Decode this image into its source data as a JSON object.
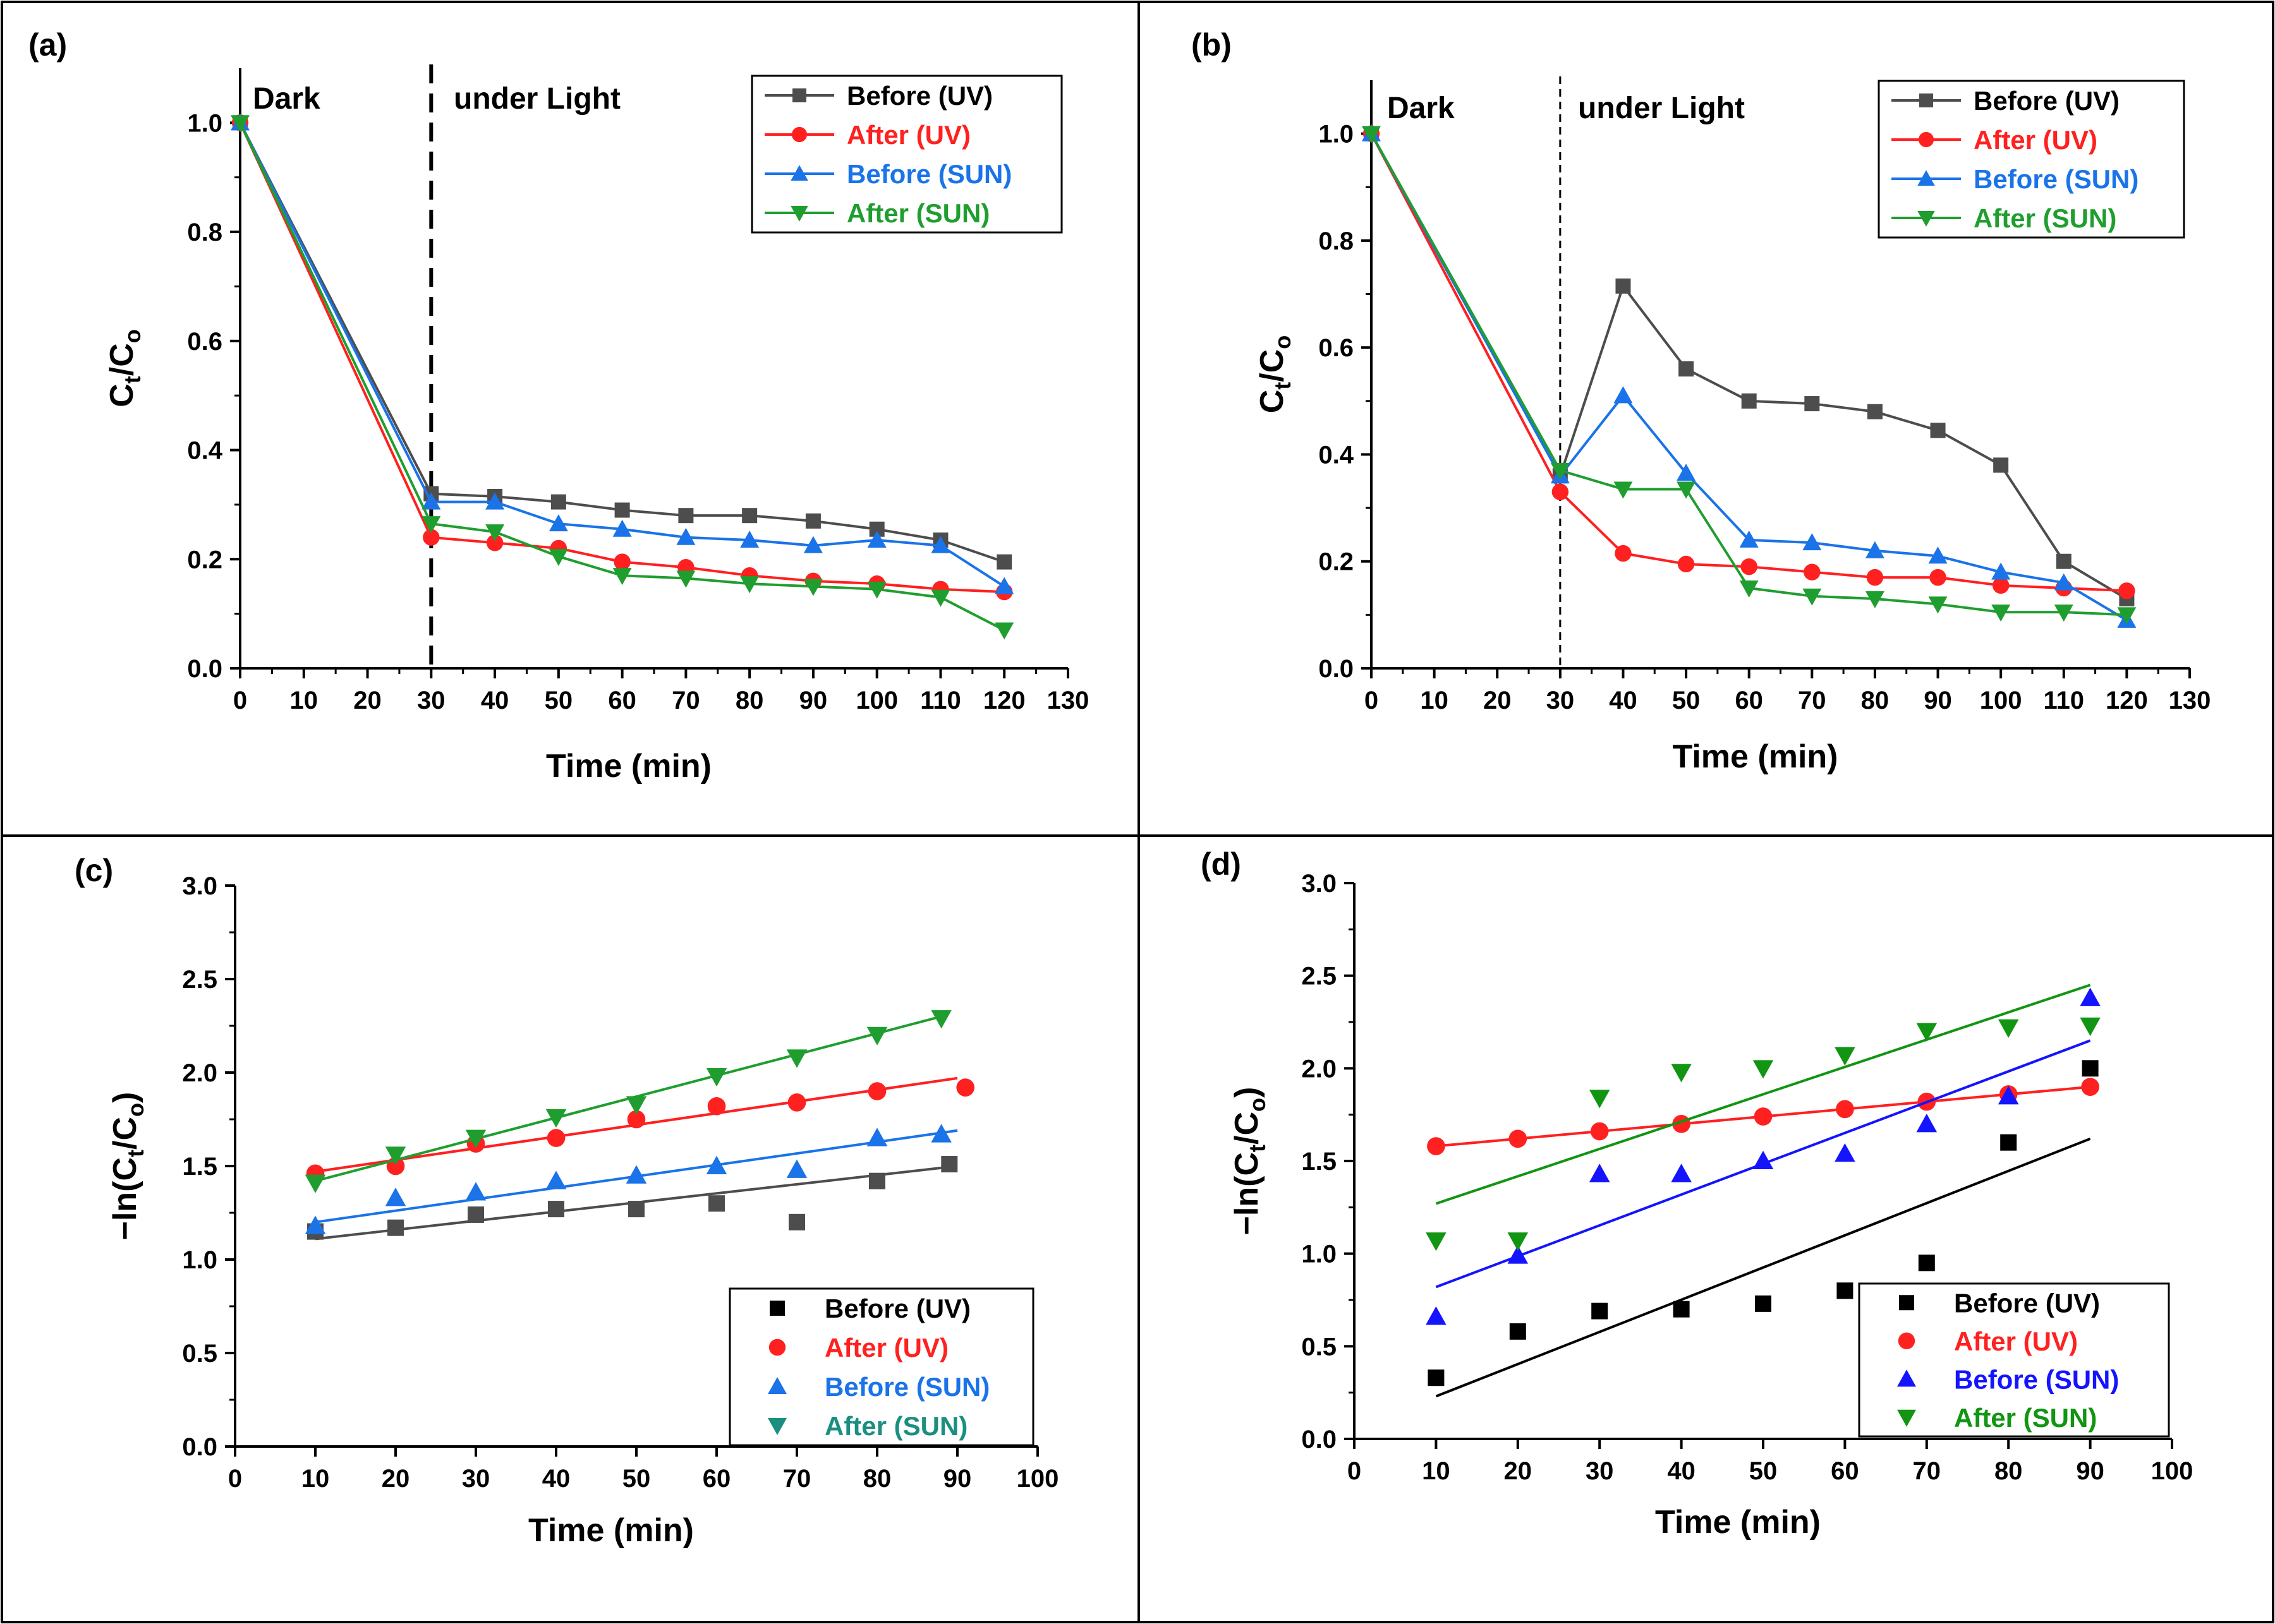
{
  "colors": {
    "before_uv": "#4d4d4d",
    "before_uv_marker_cd": "#000000",
    "after_uv": "#ff2020",
    "before_sun": "#1a73e8",
    "after_sun": "#1f9e2f",
    "before_sun_d": "#1414ff",
    "after_sun_d": "#129512",
    "legend_after_sun_c": "#1a8f80"
  },
  "chart_data": [
    {
      "id": "a",
      "panel_label": "(a)",
      "type": "line",
      "xlabel": "Time (min)",
      "ylabel": "Ct/Co",
      "xlim": [
        0,
        130
      ],
      "ylim": [
        0,
        1.1
      ],
      "xticks": [
        0,
        10,
        20,
        30,
        40,
        50,
        60,
        70,
        80,
        90,
        100,
        110,
        120,
        130
      ],
      "yticks": [
        0.0,
        0.2,
        0.4,
        0.6,
        0.8,
        1.0
      ],
      "ytick_labels": [
        "0.0",
        "0.2",
        "0.4",
        "0.6",
        "0.8",
        "1.0"
      ],
      "divider_x": 30,
      "divider_style": "dashed-bold",
      "region_labels": [
        "Dark",
        "under Light"
      ],
      "legend_position": "top-right",
      "x": [
        0,
        30,
        40,
        50,
        60,
        70,
        80,
        90,
        100,
        110,
        120
      ],
      "series": [
        {
          "name": "Before (UV)",
          "color_key": "before_uv",
          "marker": "square",
          "values": [
            1.0,
            0.32,
            0.315,
            0.305,
            0.29,
            0.28,
            0.28,
            0.27,
            0.255,
            0.235,
            0.195
          ]
        },
        {
          "name": "After (UV)",
          "color_key": "after_uv",
          "marker": "circle",
          "values": [
            1.0,
            0.24,
            0.23,
            0.22,
            0.195,
            0.185,
            0.17,
            0.16,
            0.155,
            0.145,
            0.14
          ]
        },
        {
          "name": "Before (SUN)",
          "color_key": "before_sun",
          "marker": "triangle-up",
          "values": [
            1.0,
            0.305,
            0.305,
            0.265,
            0.255,
            0.24,
            0.235,
            0.225,
            0.235,
            0.225,
            0.15
          ]
        },
        {
          "name": "After (SUN)",
          "color_key": "after_sun",
          "marker": "triangle-down",
          "values": [
            1.0,
            0.265,
            0.25,
            0.205,
            0.17,
            0.165,
            0.155,
            0.15,
            0.145,
            0.13,
            0.07
          ]
        }
      ]
    },
    {
      "id": "b",
      "panel_label": "(b)",
      "type": "line",
      "xlabel": "Time (min)",
      "ylabel": "Ct/Co",
      "xlim": [
        0,
        130
      ],
      "ylim": [
        0,
        1.1
      ],
      "xticks": [
        0,
        10,
        20,
        30,
        40,
        50,
        60,
        70,
        80,
        90,
        100,
        110,
        120,
        130
      ],
      "yticks": [
        0.0,
        0.2,
        0.4,
        0.6,
        0.8,
        1.0
      ],
      "ytick_labels": [
        "0.0",
        "0.2",
        "0.4",
        "0.6",
        "0.8",
        "1.0"
      ],
      "divider_x": 30,
      "divider_style": "dashed-thin",
      "region_labels": [
        "Dark",
        "under Light"
      ],
      "legend_position": "top-right",
      "x": [
        0,
        30,
        40,
        50,
        60,
        70,
        80,
        90,
        100,
        110,
        120
      ],
      "series": [
        {
          "name": "Before (UV)",
          "color_key": "before_uv",
          "marker": "square",
          "values": [
            1.0,
            0.36,
            0.715,
            0.56,
            0.5,
            0.495,
            0.48,
            0.445,
            0.38,
            0.2,
            0.13
          ]
        },
        {
          "name": "After (UV)",
          "color_key": "after_uv",
          "marker": "circle",
          "values": [
            1.0,
            0.33,
            0.215,
            0.195,
            0.19,
            0.18,
            0.17,
            0.17,
            0.155,
            0.15,
            0.145
          ]
        },
        {
          "name": "Before (SUN)",
          "color_key": "before_sun",
          "marker": "triangle-up",
          "values": [
            1.0,
            0.36,
            0.51,
            0.365,
            0.24,
            0.235,
            0.22,
            0.21,
            0.18,
            0.16,
            0.09
          ]
        },
        {
          "name": "After (SUN)",
          "color_key": "after_sun",
          "marker": "triangle-down",
          "values": [
            1.0,
            0.37,
            0.335,
            0.335,
            0.15,
            0.135,
            0.13,
            0.12,
            0.105,
            0.105,
            0.1
          ]
        }
      ]
    },
    {
      "id": "c",
      "panel_label": "(c)",
      "type": "scatter",
      "xlabel": "Time (min)",
      "ylabel": "-ln(Ct/Co)",
      "xlim": [
        0,
        100
      ],
      "ylim": [
        0,
        3.0
      ],
      "xticks": [
        0,
        10,
        20,
        30,
        40,
        50,
        60,
        70,
        80,
        90,
        100
      ],
      "yticks": [
        0.0,
        0.5,
        1.0,
        1.5,
        2.0,
        2.5,
        3.0
      ],
      "ytick_labels": [
        "0.0",
        "0.5",
        "1.0",
        "1.5",
        "2.0",
        "2.5",
        "3.0"
      ],
      "legend_position": "bottom-right",
      "series": [
        {
          "name": "Before (UV)",
          "color_key": "before_uv",
          "legend_color_key": "before_uv_marker_cd",
          "marker": "square",
          "x": [
            10,
            20,
            30,
            40,
            50,
            60,
            70,
            80,
            89
          ],
          "values": [
            1.15,
            1.17,
            1.24,
            1.27,
            1.27,
            1.3,
            1.2,
            1.42,
            1.51
          ],
          "fit": {
            "x": [
              10,
              90
            ],
            "y": [
              1.11,
              1.5
            ]
          }
        },
        {
          "name": "After (UV)",
          "color_key": "after_uv",
          "marker": "circle",
          "x": [
            10,
            20,
            30,
            40,
            50,
            60,
            70,
            80,
            91
          ],
          "values": [
            1.46,
            1.5,
            1.62,
            1.65,
            1.75,
            1.82,
            1.84,
            1.9,
            1.92
          ],
          "fit": {
            "x": [
              10,
              90
            ],
            "y": [
              1.47,
              1.97
            ]
          }
        },
        {
          "name": "Before (SUN)",
          "color_key": "before_sun",
          "marker": "triangle-up",
          "x": [
            10,
            20,
            30,
            40,
            50,
            60,
            70,
            80,
            88
          ],
          "values": [
            1.18,
            1.33,
            1.36,
            1.42,
            1.45,
            1.5,
            1.48,
            1.65,
            1.67
          ],
          "fit": {
            "x": [
              10,
              90
            ],
            "y": [
              1.2,
              1.69
            ]
          }
        },
        {
          "name": "After (SUN)",
          "color_key": "after_sun",
          "legend_color_key": "legend_after_sun_c",
          "marker": "triangle-down",
          "x": [
            10,
            20,
            30,
            40,
            50,
            60,
            70,
            80,
            88
          ],
          "values": [
            1.41,
            1.56,
            1.65,
            1.76,
            1.83,
            1.98,
            2.08,
            2.2,
            2.29
          ],
          "fit": {
            "x": [
              10,
              88
            ],
            "y": [
              1.42,
              2.3
            ]
          }
        }
      ]
    },
    {
      "id": "d",
      "panel_label": "(d)",
      "type": "scatter",
      "xlabel": "Time (min)",
      "ylabel": "-ln(Ct/Co)",
      "xlim": [
        0,
        100
      ],
      "ylim": [
        0,
        3.0
      ],
      "xticks": [
        0,
        10,
        20,
        30,
        40,
        50,
        60,
        70,
        80,
        90,
        100
      ],
      "yticks": [
        0.0,
        0.5,
        1.0,
        1.5,
        2.0,
        2.5,
        3.0
      ],
      "ytick_labels": [
        "0.0",
        "0.5",
        "1.0",
        "1.5",
        "2.0",
        "2.5",
        "3.0"
      ],
      "legend_position": "bottom-right",
      "series": [
        {
          "name": "Before (UV)",
          "color_key": "before_uv_marker_cd",
          "marker": "square",
          "x": [
            10,
            20,
            30,
            40,
            50,
            60,
            70,
            80,
            90
          ],
          "values": [
            0.33,
            0.58,
            0.69,
            0.7,
            0.73,
            0.8,
            0.95,
            1.6,
            2.0
          ],
          "fit": {
            "x": [
              10,
              90
            ],
            "y": [
              0.23,
              1.62
            ]
          }
        },
        {
          "name": "After (UV)",
          "color_key": "after_uv",
          "marker": "circle",
          "x": [
            10,
            20,
            30,
            40,
            50,
            60,
            70,
            80,
            90
          ],
          "values": [
            1.58,
            1.62,
            1.66,
            1.7,
            1.74,
            1.78,
            1.82,
            1.86,
            1.9
          ],
          "fit": {
            "x": [
              10,
              90
            ],
            "y": [
              1.58,
              1.9
            ]
          }
        },
        {
          "name": "Before (SUN)",
          "color_key": "before_sun_d",
          "marker": "triangle-up",
          "x": [
            10,
            20,
            30,
            40,
            50,
            60,
            70,
            80,
            90
          ],
          "values": [
            0.66,
            0.99,
            1.43,
            1.43,
            1.5,
            1.54,
            1.7,
            1.85,
            2.38
          ],
          "fit": {
            "x": [
              10,
              90
            ],
            "y": [
              0.82,
              2.15
            ]
          }
        },
        {
          "name": "After (SUN)",
          "color_key": "after_sun_d",
          "marker": "triangle-down",
          "x": [
            10,
            20,
            30,
            40,
            50,
            60,
            70,
            80,
            90
          ],
          "values": [
            1.07,
            1.07,
            1.84,
            1.98,
            2.0,
            2.07,
            2.2,
            2.22,
            2.23
          ],
          "fit": {
            "x": [
              10,
              90
            ],
            "y": [
              1.27,
              2.45
            ]
          }
        }
      ]
    }
  ]
}
